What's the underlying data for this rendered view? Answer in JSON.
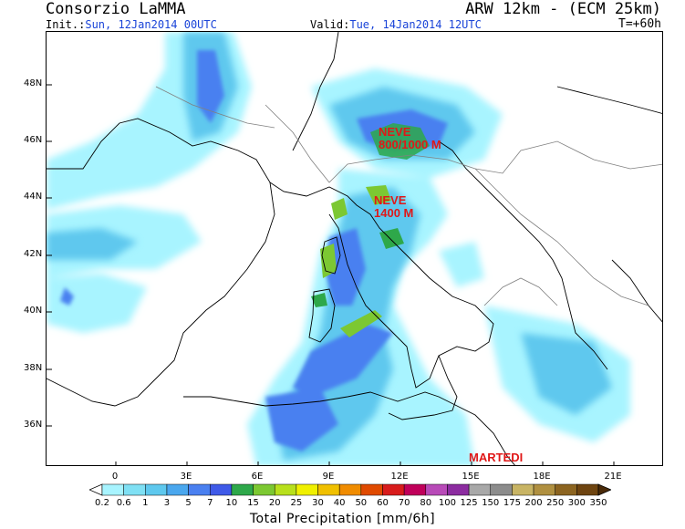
{
  "header": {
    "title_left": "Consorzio LaMMA",
    "title_right": "ARW 12km - (ECM 25km)",
    "init_label": "Init.:",
    "init_value": "Sun, 12Jan2014 00UTC",
    "valid_label": "Valid:",
    "valid_value": "Tue, 14Jan2014 12UTC",
    "forecast_hour": "T=+60h"
  },
  "map": {
    "lat_labels": [
      "48N",
      "46N",
      "44N",
      "42N",
      "40N",
      "38N",
      "36N"
    ],
    "lon_labels": [
      "0",
      "3E",
      "6E",
      "9E",
      "12E",
      "15E",
      "18E",
      "21E"
    ],
    "annotations": {
      "neve_north_1": "NEVE",
      "neve_north_2": "800/1000 M",
      "neve_center_1": "NEVE",
      "neve_center_2": "1400 M",
      "day_label": "MARTEDI"
    },
    "annotation_color": "#e01818"
  },
  "legend": {
    "labels": [
      "0.2",
      "0.6",
      "1",
      "3",
      "5",
      "7",
      "10",
      "15",
      "20",
      "25",
      "30",
      "40",
      "50",
      "60",
      "70",
      "80",
      "100",
      "125",
      "150",
      "175",
      "200",
      "250",
      "300",
      "350"
    ],
    "colors": [
      "#a8f4ff",
      "#7fe0f4",
      "#5ec8ee",
      "#4aa7ee",
      "#4a80f0",
      "#3f5ae8",
      "#2ea84a",
      "#7cc832",
      "#b8e01c",
      "#f0f000",
      "#f0c000",
      "#f08c00",
      "#e04a00",
      "#d81c1c",
      "#c0005a",
      "#b84ab8",
      "#8c2ca0",
      "#a8a8a8",
      "#8c8c8c",
      "#c8b464",
      "#b09040",
      "#8c6420",
      "#6e4410"
    ],
    "title": "Total Precipitation [mm/6h]"
  }
}
